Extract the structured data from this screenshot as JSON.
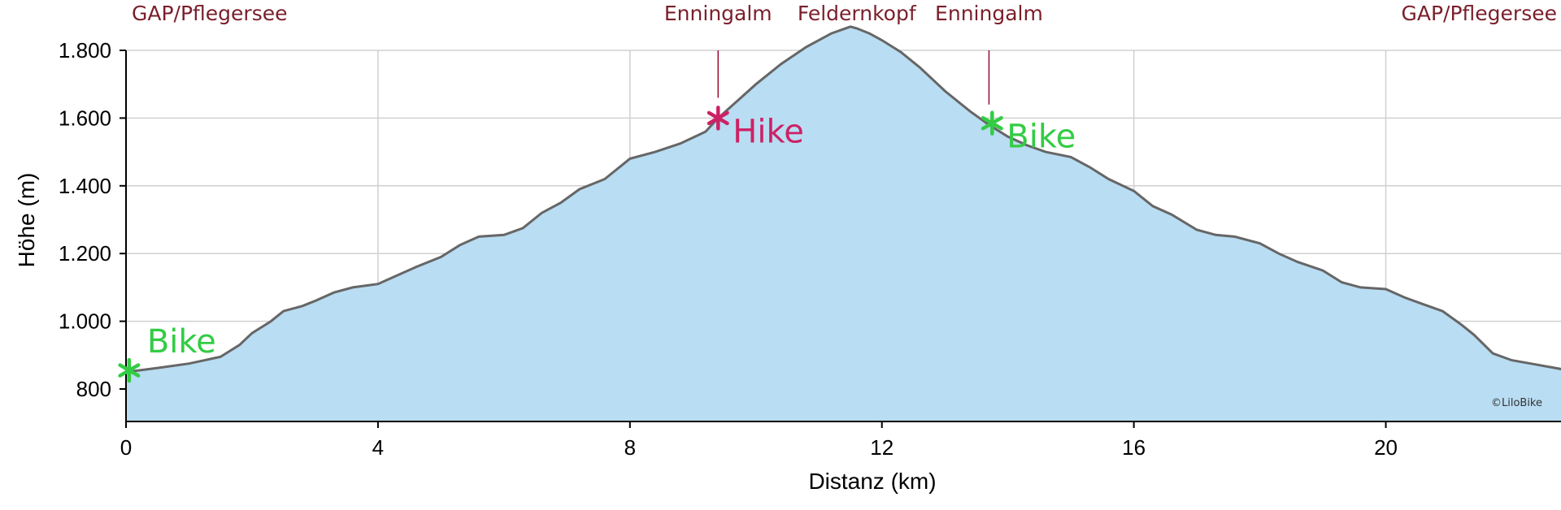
{
  "chart_data": {
    "type": "area",
    "xlabel": "Distanz (km)",
    "ylabel": "Höhe (m)",
    "xlim": [
      0,
      23.1
    ],
    "ylim": [
      700,
      1880
    ],
    "x_ticks": [
      {
        "value": 0,
        "label": "0"
      },
      {
        "value": 4,
        "label": "4"
      },
      {
        "value": 8,
        "label": "8"
      },
      {
        "value": 12,
        "label": "12"
      },
      {
        "value": 16,
        "label": "16"
      },
      {
        "value": 20,
        "label": "20"
      }
    ],
    "y_ticks": [
      {
        "value": 800,
        "label": "800"
      },
      {
        "value": 1000,
        "label": "1.000"
      },
      {
        "value": 1200,
        "label": "1.200"
      },
      {
        "value": 1400,
        "label": "1.400"
      },
      {
        "value": 1600,
        "label": "1.600"
      },
      {
        "value": 1800,
        "label": "1.800"
      }
    ],
    "grid": true,
    "fill_color": "#b9ddf2",
    "line_color": "#666666",
    "profile": {
      "x": [
        0,
        0.5,
        1.0,
        1.5,
        1.8,
        2.0,
        2.3,
        2.5,
        2.8,
        3.0,
        3.3,
        3.6,
        4.0,
        4.3,
        4.6,
        5.0,
        5.3,
        5.6,
        6.0,
        6.3,
        6.6,
        6.9,
        7.2,
        7.6,
        8.0,
        8.4,
        8.8,
        9.2,
        9.4,
        9.7,
        10.0,
        10.4,
        10.8,
        11.2,
        11.5,
        11.6,
        11.8,
        12.0,
        12.3,
        12.6,
        13.0,
        13.4,
        13.7,
        14.0,
        14.3,
        14.6,
        15.0,
        15.3,
        15.6,
        16.0,
        16.3,
        16.6,
        17.0,
        17.3,
        17.6,
        18.0,
        18.3,
        18.6,
        19.0,
        19.3,
        19.6,
        20.0,
        20.3,
        20.6,
        20.9,
        21.2,
        21.4,
        21.7,
        22.0,
        22.3,
        22.6,
        22.9,
        23.1
      ],
      "y": [
        850,
        862,
        875,
        895,
        930,
        965,
        1000,
        1030,
        1045,
        1060,
        1085,
        1100,
        1110,
        1135,
        1160,
        1190,
        1225,
        1250,
        1255,
        1275,
        1320,
        1350,
        1390,
        1420,
        1480,
        1500,
        1525,
        1560,
        1600,
        1650,
        1700,
        1760,
        1810,
        1850,
        1870,
        1865,
        1850,
        1830,
        1795,
        1750,
        1680,
        1620,
        1580,
        1545,
        1520,
        1500,
        1485,
        1455,
        1420,
        1385,
        1340,
        1315,
        1270,
        1255,
        1250,
        1230,
        1200,
        1175,
        1150,
        1115,
        1100,
        1095,
        1070,
        1050,
        1030,
        990,
        960,
        905,
        885,
        875,
        865,
        855,
        850
      ]
    },
    "markers": [
      {
        "label": "Bike",
        "x": 0.05,
        "y": 855,
        "color": "#33cc44"
      },
      {
        "label": "Hike",
        "x": 9.4,
        "y": 1600,
        "color": "#cc2266"
      },
      {
        "label": "Bike",
        "x": 13.75,
        "y": 1585,
        "color": "#33cc44"
      }
    ],
    "places": [
      {
        "name": "GAP/Pflegersee",
        "x": 0,
        "has_line": false
      },
      {
        "name": "Enningalm",
        "x": 9.4,
        "has_line": true
      },
      {
        "name": "Feldernkopf",
        "x": 11.6,
        "has_line": false
      },
      {
        "name": "Enningalm",
        "x": 13.7,
        "has_line": true
      },
      {
        "name": "GAP/Pflegersee",
        "x": 23.05,
        "has_line": true
      }
    ],
    "copyright": "©LiloBike"
  }
}
